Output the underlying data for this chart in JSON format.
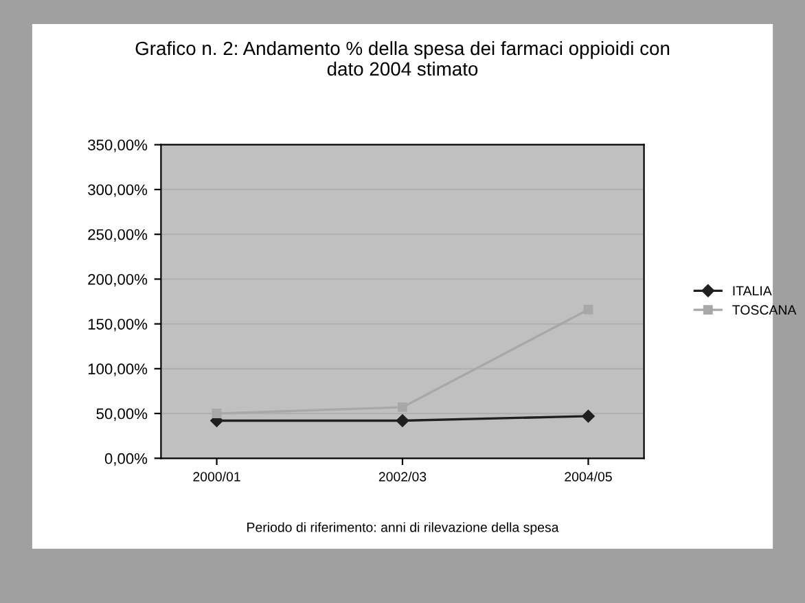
{
  "chart_data": {
    "type": "line",
    "title": "Grafico n. 2: Andamento % della spesa dei farmaci oppioidi con\ndato 2004 stimato",
    "xlabel": "Periodo di riferimento: anni di rilevazione della spesa",
    "categories": [
      "2000/01",
      "2002/03",
      "2004/05"
    ],
    "series": [
      {
        "name": "ITALIA",
        "color": "#202020",
        "values": [
          42,
          42,
          47
        ],
        "marker": "diamond"
      },
      {
        "name": "TOSCANA",
        "color": "#a8a8a8",
        "values": [
          50,
          57,
          166
        ],
        "marker": "square"
      }
    ],
    "ylim": [
      0,
      350
    ],
    "yticks": [
      {
        "value": 0,
        "label": "0,00%"
      },
      {
        "value": 50,
        "label": "50,00%"
      },
      {
        "value": 100,
        "label": "100,00%"
      },
      {
        "value": 150,
        "label": "150,00%"
      },
      {
        "value": 200,
        "label": "200,00%"
      },
      {
        "value": 250,
        "label": "250,00%"
      },
      {
        "value": 300,
        "label": "300,00%"
      },
      {
        "value": 350,
        "label": "350,00%"
      }
    ],
    "grid": "y",
    "legend": "right",
    "line_style": "solid"
  }
}
